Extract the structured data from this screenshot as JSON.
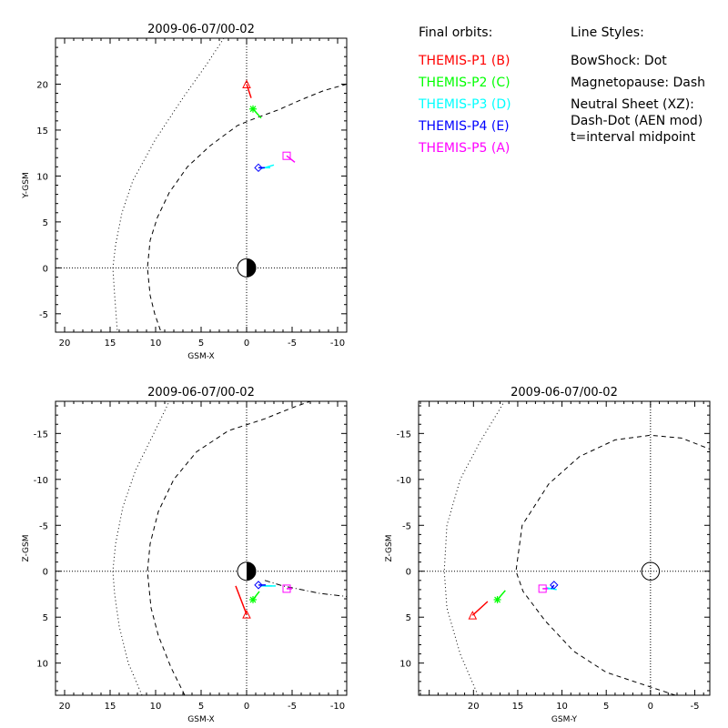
{
  "legend": {
    "orbits_title": "Final orbits:",
    "styles_title": "Line Styles:",
    "orbits": [
      {
        "label": "THEMIS-P1 (B)",
        "color": "#ff0000"
      },
      {
        "label": "THEMIS-P2 (C)",
        "color": "#00ff00"
      },
      {
        "label": "THEMIS-P3 (D)",
        "color": "#00ffff"
      },
      {
        "label": "THEMIS-P4 (E)",
        "color": "#0000ff"
      },
      {
        "label": "THEMIS-P5 (A)",
        "color": "#ff00ff"
      }
    ],
    "styles": [
      "BowShock: Dot",
      "Magnetopause: Dash",
      "Neutral Sheet (XZ):",
      "  Dash-Dot (AEN mod)",
      "  t=interval midpoint"
    ]
  },
  "chart_data": [
    {
      "type": "scatter",
      "title": "2009-06-07/00-02",
      "xlabel": "GSM-X",
      "ylabel": "Y-GSM",
      "xlim": [
        21,
        -11
      ],
      "ylim": [
        25,
        -7
      ],
      "xticks": [
        20,
        15,
        10,
        5,
        0,
        -5,
        -10
      ],
      "yticks": [
        -5,
        0,
        5,
        10,
        15,
        20
      ],
      "earth": "half",
      "bowshock": [
        [
          2.5,
          25
        ],
        [
          4.5,
          22
        ],
        [
          7,
          18.5
        ],
        [
          10,
          14
        ],
        [
          12.5,
          9.5
        ],
        [
          13.7,
          6
        ],
        [
          14.4,
          2.5
        ],
        [
          14.7,
          0
        ],
        [
          14.5,
          -3
        ],
        [
          14.2,
          -7
        ]
      ],
      "magnetopause": [
        [
          -11,
          20
        ],
        [
          -8.5,
          19.3
        ],
        [
          -6,
          18.3
        ],
        [
          -3.5,
          17.2
        ],
        [
          -1,
          16.3
        ],
        [
          1,
          15.5
        ],
        [
          4,
          13.3
        ],
        [
          6.5,
          11
        ],
        [
          8.5,
          8.2
        ],
        [
          9.8,
          5.5
        ],
        [
          10.6,
          3
        ],
        [
          10.9,
          0
        ],
        [
          10.6,
          -3
        ],
        [
          10.1,
          -5
        ],
        [
          9.4,
          -7
        ]
      ],
      "probes": [
        {
          "name": "P1",
          "symbol": "triangle",
          "color": "#ff0000",
          "point": [
            0,
            20
          ],
          "track": [
            [
              0,
              20
            ],
            [
              -0.5,
              18.5
            ]
          ]
        },
        {
          "name": "P2",
          "symbol": "asterisk",
          "color": "#00ff00",
          "point": [
            -0.7,
            17.3
          ],
          "track": [
            [
              -0.7,
              17.3
            ],
            [
              -1.6,
              16.3
            ]
          ]
        },
        {
          "name": "P3",
          "symbol": "dash",
          "color": "#00ffff",
          "point": [
            -2.2,
            10.9
          ],
          "track": [
            [
              -1.6,
              10.8
            ],
            [
              -3.0,
              11.2
            ]
          ]
        },
        {
          "name": "P4",
          "symbol": "diamond",
          "color": "#0000ff",
          "point": [
            -1.3,
            10.9
          ],
          "track": [
            [
              -1.3,
              10.9
            ],
            [
              -2.0,
              10.9
            ]
          ]
        },
        {
          "name": "P5",
          "symbol": "square",
          "color": "#ff00ff",
          "point": [
            -4.4,
            12.2
          ],
          "track": [
            [
              -4.4,
              12.2
            ],
            [
              -5.3,
              11.5
            ]
          ]
        }
      ]
    },
    {
      "type": "scatter",
      "title": "2009-06-07/00-02",
      "xlabel": "GSM-X",
      "ylabel": "Z-GSM",
      "xlim": [
        21,
        -11
      ],
      "ylim": [
        -18.5,
        13.5
      ],
      "xticks": [
        20,
        15,
        10,
        5,
        0,
        -5,
        -10
      ],
      "yticks": [
        10,
        5,
        0,
        -5,
        -10,
        -15
      ],
      "earth": "half",
      "bowshock": [
        [
          11.5,
          13.5
        ],
        [
          13,
          10
        ],
        [
          14,
          6
        ],
        [
          14.5,
          2.5
        ],
        [
          14.7,
          0
        ],
        [
          14.4,
          -3
        ],
        [
          13.6,
          -7
        ],
        [
          12.2,
          -11
        ],
        [
          10.2,
          -15
        ],
        [
          8.5,
          -18.5
        ]
      ],
      "magnetopause": [
        [
          6.8,
          13.5
        ],
        [
          8.3,
          10.5
        ],
        [
          9.7,
          7
        ],
        [
          10.5,
          4
        ],
        [
          10.9,
          0
        ],
        [
          10.6,
          -3
        ],
        [
          9.7,
          -6.5
        ],
        [
          8,
          -10
        ],
        [
          5.5,
          -13
        ],
        [
          2,
          -15.3
        ],
        [
          -2,
          -16.6
        ],
        [
          -5,
          -17.8
        ],
        [
          -7,
          -18.5
        ]
      ],
      "neutral_sheet": [
        [
          -2,
          1.0
        ],
        [
          -4,
          1.6
        ],
        [
          -6,
          2.0
        ],
        [
          -8,
          2.4
        ],
        [
          -11,
          2.75
        ]
      ],
      "probes": [
        {
          "name": "P1",
          "symbol": "triangle",
          "color": "#ff0000",
          "point": [
            0,
            4.7
          ],
          "track": [
            [
              0,
              4.7
            ],
            [
              1.2,
              1.6
            ]
          ]
        },
        {
          "name": "P2",
          "symbol": "asterisk",
          "color": "#00ff00",
          "point": [
            -0.7,
            3.1
          ],
          "track": [
            [
              -0.7,
              3.1
            ],
            [
              -1.4,
              2.2
            ]
          ]
        },
        {
          "name": "P3",
          "symbol": "dash",
          "color": "#00ffff",
          "point": [
            -2.4,
            1.6
          ],
          "track": [
            [
              -1.6,
              1.6
            ],
            [
              -3.2,
              1.6
            ]
          ]
        },
        {
          "name": "P4",
          "symbol": "diamond",
          "color": "#0000ff",
          "point": [
            -1.3,
            1.5
          ],
          "track": [
            [
              -1.3,
              1.5
            ],
            [
              -2.1,
              1.5
            ]
          ]
        },
        {
          "name": "P5",
          "symbol": "square",
          "color": "#ff00ff",
          "point": [
            -4.4,
            1.9
          ],
          "track": [
            [
              -4.4,
              1.9
            ],
            [
              -5.0,
              1.9
            ]
          ]
        }
      ]
    },
    {
      "type": "scatter",
      "title": "2009-06-07/00-02",
      "xlabel": "GSM-Y",
      "ylabel": "Z-GSM",
      "xlim": [
        26.2,
        -6.7
      ],
      "ylim": [
        -18.5,
        13.5
      ],
      "xticks": [
        20,
        15,
        10,
        5,
        0,
        -5
      ],
      "yticks": [
        10,
        5,
        0,
        -5,
        -10,
        -15
      ],
      "earth": "circle",
      "bowshock": [
        [
          19.5,
          13.5
        ],
        [
          21.5,
          9
        ],
        [
          23,
          4
        ],
        [
          23.3,
          0
        ],
        [
          23,
          -5
        ],
        [
          21.5,
          -10
        ],
        [
          19.3,
          -14
        ],
        [
          16.5,
          -18.5
        ]
      ],
      "magnetopause": [
        [
          -2.8,
          13.5
        ],
        [
          0,
          12.6
        ],
        [
          5,
          11
        ],
        [
          8.7,
          8.7
        ],
        [
          11.9,
          5.4
        ],
        [
          14.4,
          2.2
        ],
        [
          15.2,
          0
        ],
        [
          14.5,
          -5
        ],
        [
          11.5,
          -9.5
        ],
        [
          8,
          -12.5
        ],
        [
          4,
          -14.3
        ],
        [
          0,
          -14.8
        ],
        [
          -3.5,
          -14.5
        ],
        [
          -6.7,
          -13.3
        ]
      ],
      "probes": [
        {
          "name": "P1",
          "symbol": "triangle",
          "color": "#ff0000",
          "point": [
            20.1,
            4.8
          ],
          "track": [
            [
              20.1,
              4.8
            ],
            [
              18.4,
              3.3
            ]
          ]
        },
        {
          "name": "P2",
          "symbol": "asterisk",
          "color": "#00ff00",
          "point": [
            17.3,
            3.1
          ],
          "track": [
            [
              17.3,
              3.1
            ],
            [
              16.4,
              2.1
            ]
          ]
        },
        {
          "name": "P3",
          "symbol": "dash",
          "color": "#00ffff",
          "point": [
            11.2,
            1.9
          ],
          "track": [
            [
              10.6,
              2.0
            ],
            [
              11.8,
              1.8
            ]
          ]
        },
        {
          "name": "P4",
          "symbol": "diamond",
          "color": "#0000ff",
          "point": [
            10.9,
            1.5
          ],
          "track": [
            [
              10.9,
              1.5
            ],
            [
              11.2,
              1.9
            ]
          ]
        },
        {
          "name": "P5",
          "symbol": "square",
          "color": "#ff00ff",
          "point": [
            12.2,
            1.9
          ],
          "track": [
            [
              12.2,
              1.9
            ],
            [
              11.6,
              1.9
            ]
          ]
        }
      ]
    }
  ]
}
